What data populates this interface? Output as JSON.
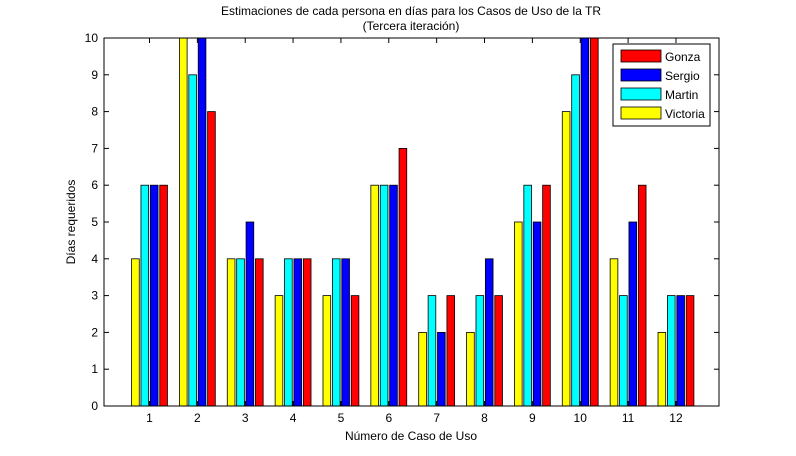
{
  "chart_data": {
    "type": "bar",
    "title": "Estimaciones de cada persona en días para los Casos de Uso de la TR",
    "subtitle": "(Tercera iteración)",
    "xlabel": "Número de Caso de Uso",
    "ylabel": "Días requeridos",
    "categories": [
      "1",
      "2",
      "3",
      "4",
      "5",
      "6",
      "7",
      "8",
      "9",
      "10",
      "11",
      "12"
    ],
    "ylim": [
      0,
      10
    ],
    "yticks": [
      "0",
      "1",
      "2",
      "3",
      "4",
      "5",
      "6",
      "7",
      "8",
      "9",
      "10"
    ],
    "grid": false,
    "legend_position": "top-right",
    "series": [
      {
        "name": "Victoria",
        "color": "#ffff00",
        "values": [
          4,
          10,
          4,
          3,
          3,
          6,
          2,
          2,
          5,
          8,
          4,
          2
        ]
      },
      {
        "name": "Martin",
        "color": "#00ffff",
        "values": [
          6,
          9,
          4,
          4,
          4,
          6,
          3,
          3,
          6,
          9,
          3,
          3
        ]
      },
      {
        "name": "Sergio",
        "color": "#0000ff",
        "values": [
          6,
          10,
          5,
          4,
          4,
          6,
          2,
          4,
          5,
          10,
          5,
          3
        ]
      },
      {
        "name": "Gonza",
        "color": "#ff0000",
        "values": [
          6,
          8,
          4,
          4,
          3,
          7,
          3,
          3,
          6,
          10,
          6,
          3
        ]
      }
    ],
    "legend_order": [
      "Gonza",
      "Sergio",
      "Martin",
      "Victoria"
    ]
  }
}
